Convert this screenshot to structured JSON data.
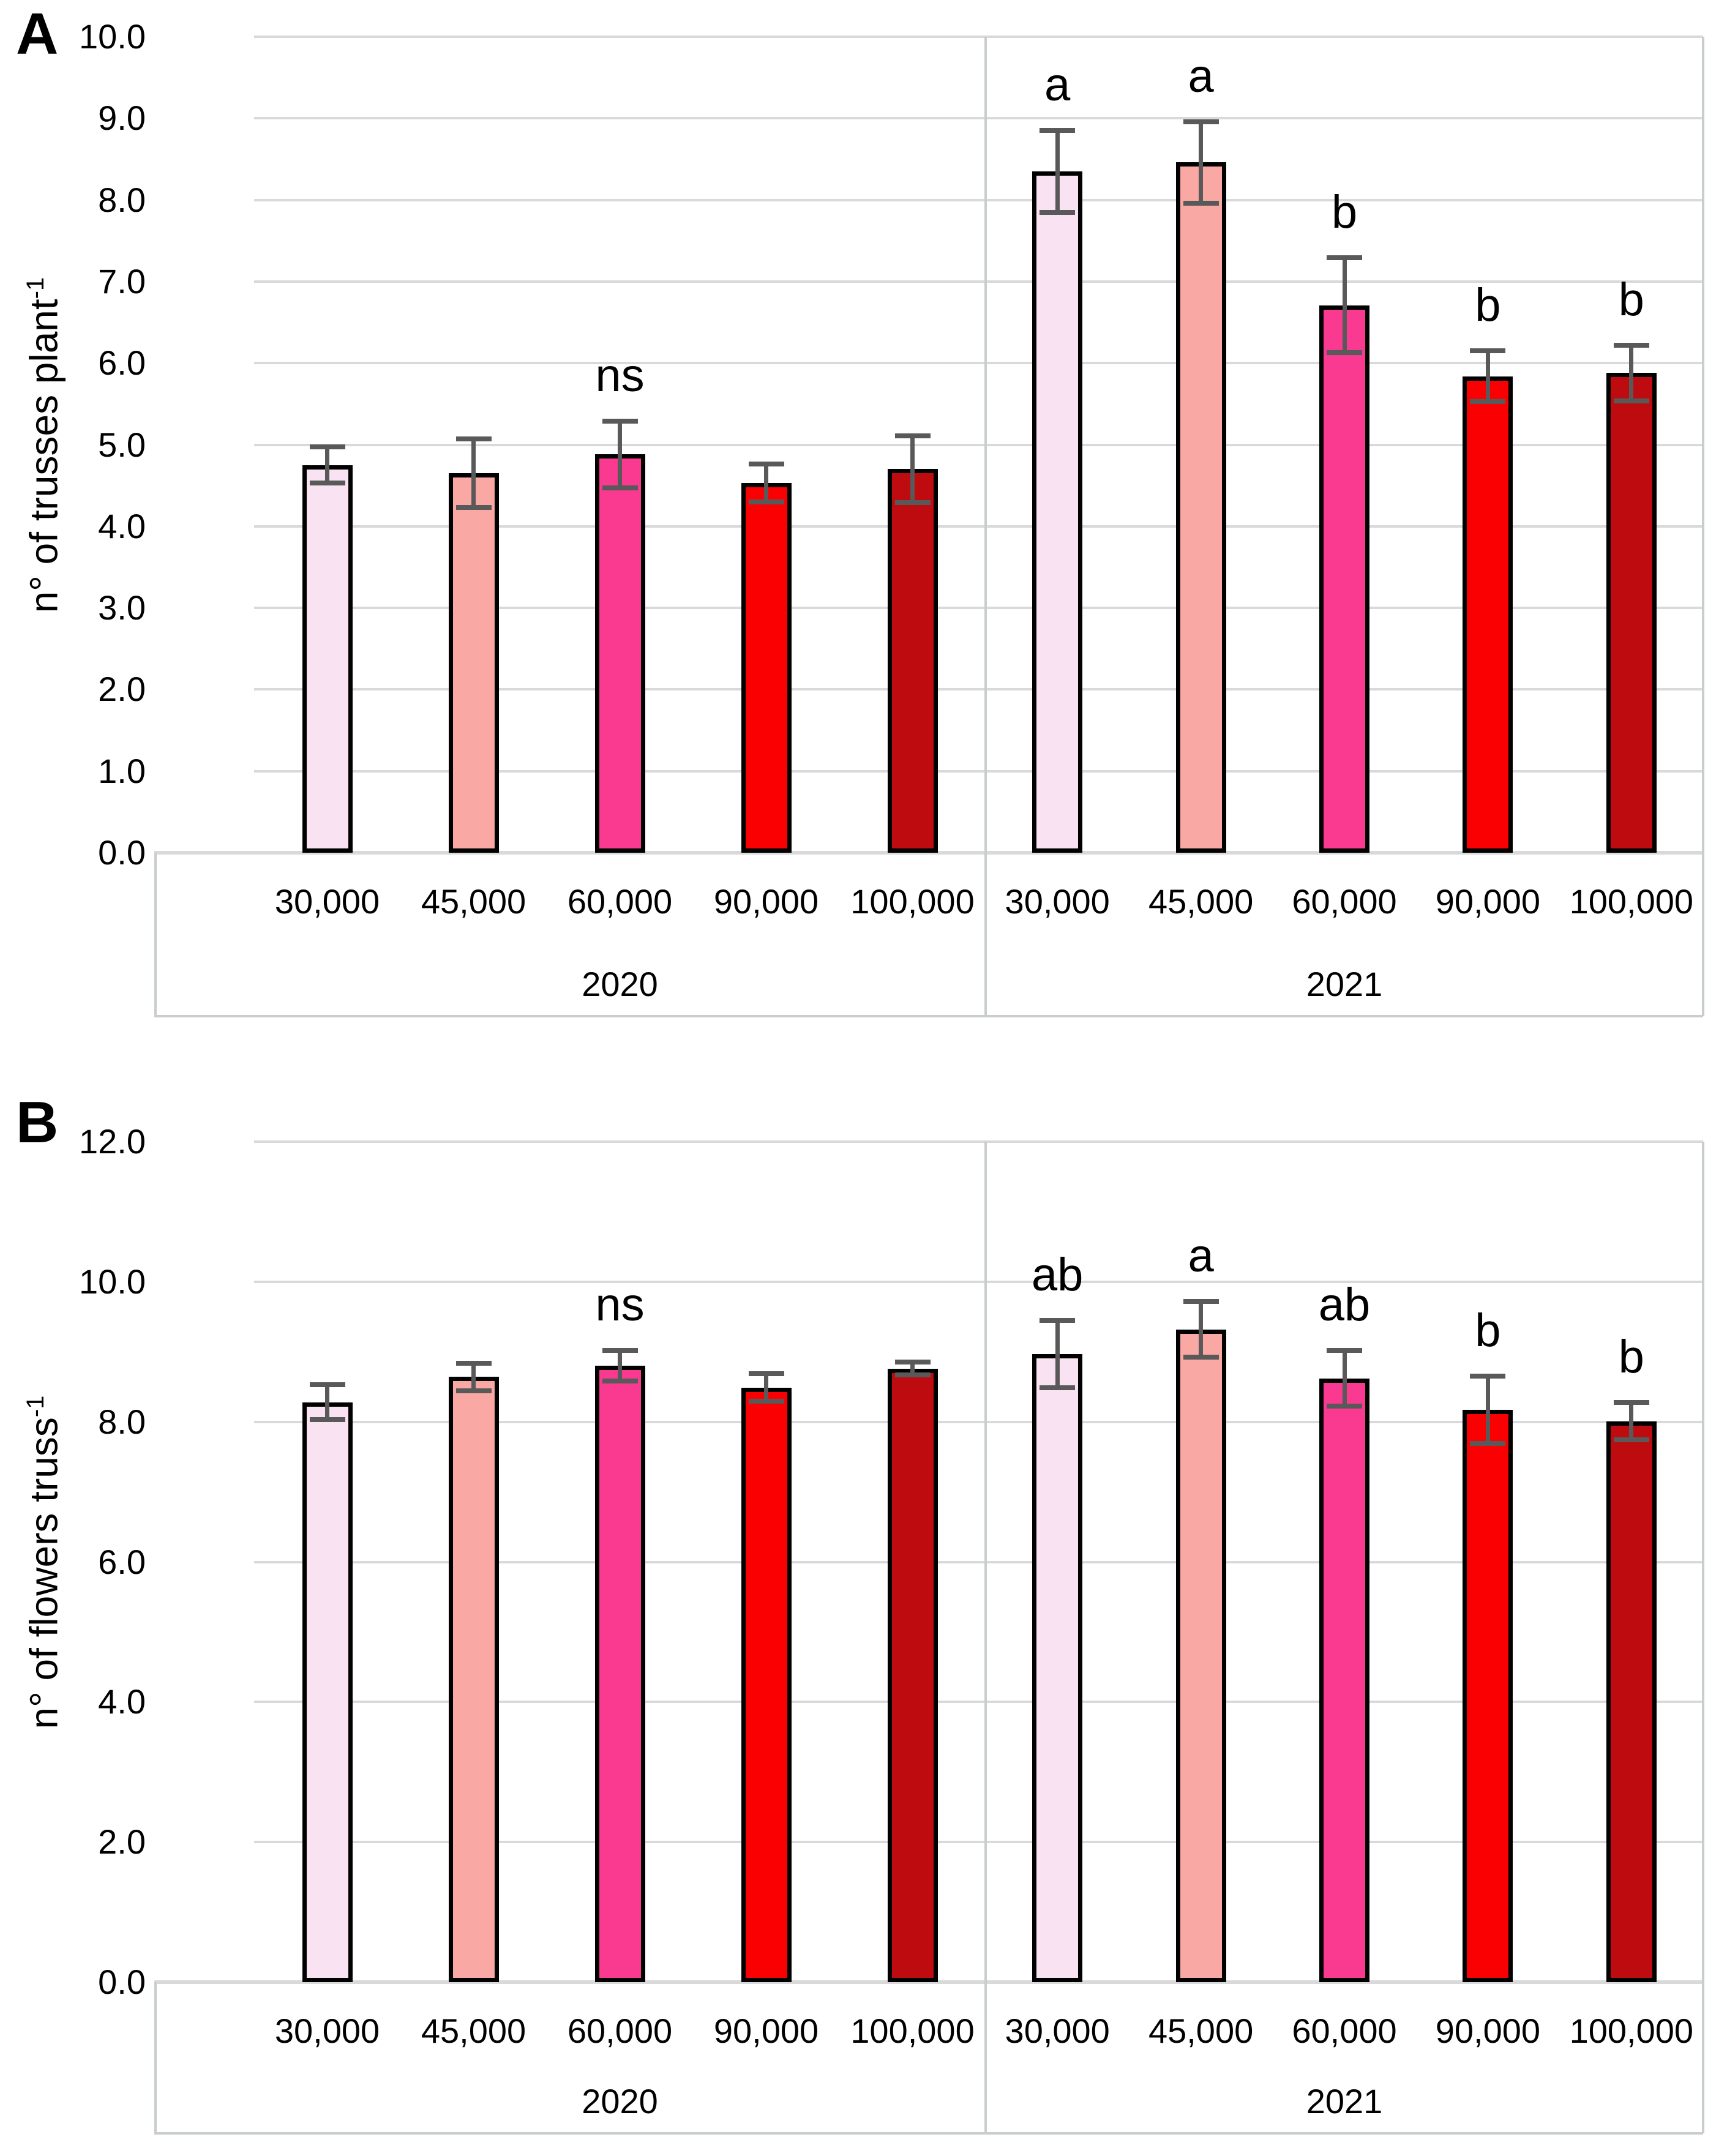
{
  "figure": {
    "background": "#ffffff",
    "panels": [
      {
        "letter": "A",
        "ylabel_text": "n° of trusses plant",
        "ylabel_sup": "-1"
      },
      {
        "letter": "B",
        "ylabel_text": "n° of flowers truss",
        "ylabel_sup": "-1"
      }
    ]
  },
  "colors": {
    "bar_fills": [
      "#F9E2F1",
      "#FAA8A3",
      "#F93A90",
      "#FB0003",
      "#BE0B10"
    ],
    "bar_border": "#000000",
    "error_bar": "#595959",
    "gridline": "#D9D9D9",
    "box_border": "#C9CDCD",
    "text": "#000000"
  },
  "chart_data": [
    {
      "type": "bar",
      "panel": "A",
      "title": "",
      "xlabel": "",
      "ylabel": "n° of trusses plant^-1",
      "ylim": [
        0,
        10
      ],
      "ytick_step": 1.0,
      "ytick_labels": [
        "0.0",
        "1.0",
        "2.0",
        "3.0",
        "4.0",
        "5.0",
        "6.0",
        "7.0",
        "8.0",
        "9.0",
        "10.0"
      ],
      "grid": true,
      "legend": "none",
      "categories": [
        "30,000",
        "45,000",
        "60,000",
        "90,000",
        "100,000"
      ],
      "groups": [
        {
          "label": "2020",
          "values": [
            4.75,
            4.65,
            4.88,
            4.53,
            4.7
          ],
          "errors": [
            0.22,
            0.42,
            0.41,
            0.23,
            0.41
          ],
          "sig": [
            "",
            "",
            "ns",
            "",
            ""
          ]
        },
        {
          "label": "2021",
          "values": [
            8.35,
            8.46,
            6.71,
            5.84,
            5.88
          ],
          "errors": [
            0.5,
            0.5,
            0.58,
            0.31,
            0.34
          ],
          "sig": [
            "a",
            "a",
            "b",
            "b",
            "b"
          ]
        }
      ]
    },
    {
      "type": "bar",
      "panel": "B",
      "title": "",
      "xlabel": "",
      "ylabel": "n° of flowers truss^-1",
      "ylim": [
        0,
        12
      ],
      "ytick_step": 2.0,
      "ytick_labels": [
        "0.0",
        "2.0",
        "4.0",
        "6.0",
        "8.0",
        "10.0",
        "12.0"
      ],
      "grid": true,
      "legend": "none",
      "categories": [
        "30,000",
        "45,000",
        "60,000",
        "90,000",
        "100,000"
      ],
      "groups": [
        {
          "label": "2020",
          "values": [
            8.28,
            8.64,
            8.8,
            8.49,
            8.76
          ],
          "errors": [
            0.25,
            0.2,
            0.22,
            0.2,
            0.09
          ],
          "sig": [
            "",
            "",
            "ns",
            "",
            ""
          ]
        },
        {
          "label": "2021",
          "values": [
            8.97,
            9.32,
            8.62,
            8.17,
            8.01
          ],
          "errors": [
            0.48,
            0.4,
            0.4,
            0.48,
            0.27
          ],
          "sig": [
            "ab",
            "a",
            "ab",
            "b",
            "b"
          ]
        }
      ]
    }
  ]
}
